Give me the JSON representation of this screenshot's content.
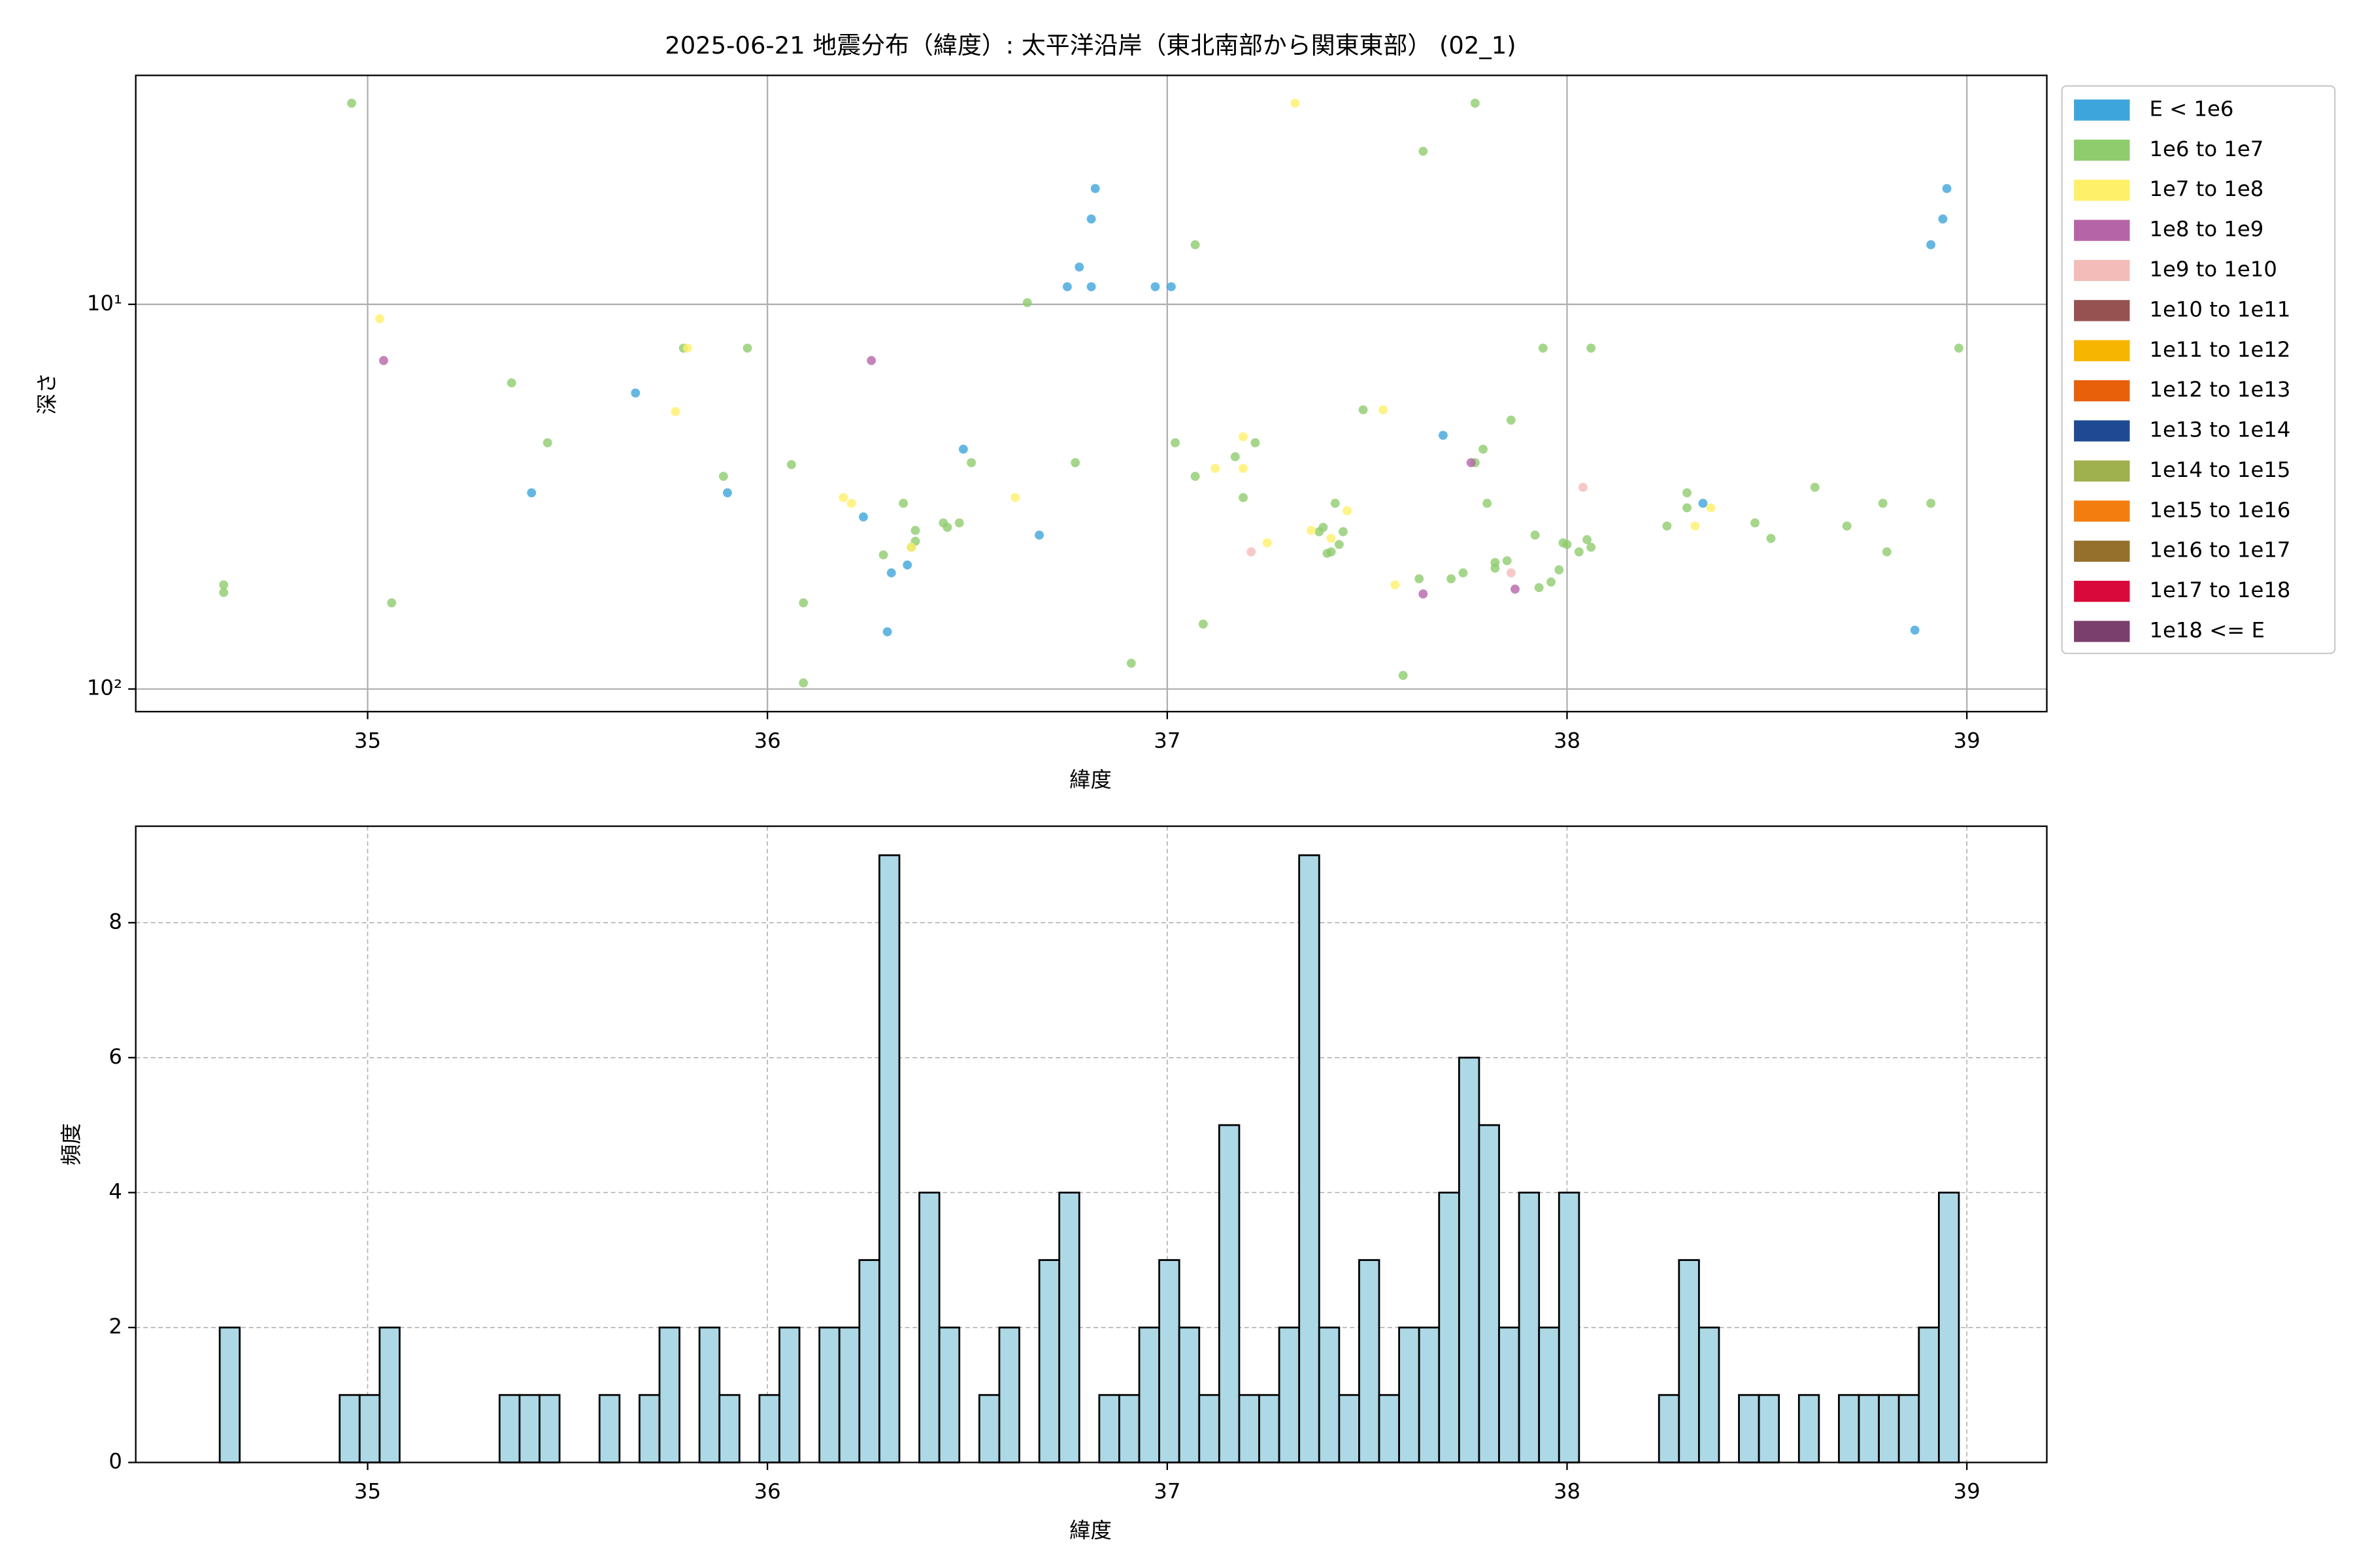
{
  "chart_data": [
    {
      "type": "scatter",
      "title": "2025-06-21 地震分布（緯度）: 太平洋沿岸（東北南部から関東東部） (02_1)",
      "xlabel": "緯度",
      "ylabel": "深さ",
      "xlim": [
        34.42,
        39.2
      ],
      "xticks": [
        35,
        36,
        37,
        38,
        39
      ],
      "ylim": [
        2.54,
        114.5
      ],
      "ylog": true,
      "yinverted": true,
      "yticks": [
        {
          "value": 10,
          "label": "10¹"
        },
        {
          "value": 100,
          "label": "10²"
        }
      ],
      "grid": true,
      "legend": "outside upper right",
      "series": [
        {
          "name": "E < 1e6",
          "color": "#3ea5dc",
          "x": [
            35.67,
            35.41,
            35.9,
            36.24,
            36.35,
            36.31,
            36.3,
            36.49,
            36.68,
            36.82,
            36.81,
            36.78,
            36.75,
            36.81,
            36.97,
            37.01,
            37.69,
            38.34,
            38.95,
            38.94,
            38.91,
            38.87
          ],
          "y": [
            17.0,
            30.9,
            30.9,
            35.7,
            47.6,
            49.9,
            71.0,
            23.8,
            39.8,
            5.0,
            6.0,
            8.0,
            9.0,
            9.0,
            9.0,
            9.0,
            21.9,
            32.9,
            5.0,
            6.0,
            7.0,
            70.3
          ]
        },
        {
          "name": "1e6 to 1e7",
          "color": "#8fcc6e",
          "x": [
            34.96,
            34.64,
            34.64,
            35.06,
            35.36,
            35.45,
            35.79,
            35.95,
            35.89,
            36.06,
            36.09,
            36.09,
            36.29,
            36.34,
            36.37,
            36.37,
            36.36,
            36.44,
            36.45,
            36.48,
            36.51,
            36.65,
            36.77,
            36.91,
            37.02,
            37.07,
            37.07,
            37.09,
            37.17,
            37.22,
            37.19,
            37.38,
            37.39,
            37.4,
            37.41,
            37.42,
            37.43,
            37.44,
            37.49,
            37.59,
            37.63,
            37.64,
            37.71,
            37.74,
            37.77,
            37.79,
            37.77,
            37.8,
            37.82,
            37.82,
            37.85,
            37.86,
            37.92,
            37.93,
            37.94,
            37.96,
            37.98,
            37.99,
            38.0,
            38.03,
            38.05,
            38.06,
            38.06,
            38.25,
            38.3,
            38.3,
            38.47,
            38.51,
            38.62,
            38.7,
            38.79,
            38.8,
            38.91,
            38.98
          ],
          "y": [
            3.0,
            53.6,
            56.1,
            59.7,
            16.0,
            22.9,
            13.0,
            13.0,
            28.0,
            26.1,
            59.7,
            96.4,
            44.8,
            32.9,
            38.7,
            41.3,
            42.8,
            37.0,
            38.0,
            37.0,
            25.8,
            9.9,
            25.8,
            85.7,
            22.9,
            7.0,
            28.0,
            67.8,
            24.9,
            22.9,
            31.8,
            39.0,
            38.0,
            44.4,
            44.0,
            32.9,
            42.1,
            39.0,
            18.8,
            92.2,
            51.7,
            4.0,
            51.7,
            49.9,
            3.0,
            23.8,
            25.8,
            32.9,
            46.9,
            48.5,
            46.4,
            20.0,
            39.8,
            54.5,
            13.0,
            52.7,
            49.0,
            41.7,
            42.1,
            44.0,
            40.9,
            13.0,
            42.8,
            37.7,
            30.9,
            33.8,
            37.0,
            40.6,
            29.9,
            37.7,
            32.9,
            44.0,
            32.9,
            13.0
          ]
        },
        {
          "name": "1e7 to 1e8",
          "color": "#fff06a",
          "x": [
            35.03,
            35.77,
            35.8,
            36.19,
            36.21,
            36.36,
            36.62,
            37.12,
            37.19,
            37.19,
            37.25,
            37.32,
            37.36,
            37.41,
            37.45,
            37.54,
            37.57,
            38.32,
            38.36
          ],
          "y": [
            10.9,
            19.0,
            13.0,
            31.8,
            32.9,
            42.8,
            31.8,
            26.7,
            22.1,
            26.7,
            41.7,
            3.0,
            38.7,
            40.6,
            34.4,
            18.8,
            53.6,
            37.7,
            33.8
          ]
        },
        {
          "name": "1e8 to 1e9",
          "color": "#b565a7",
          "x": [
            35.04,
            36.26,
            37.64,
            37.76,
            37.87
          ],
          "y": [
            14.0,
            14.0,
            56.6,
            25.8,
            55.0
          ]
        },
        {
          "name": "1e9 to 1e10",
          "color": "#f4bcb8",
          "x": [
            37.21,
            38.04,
            37.86
          ],
          "y": [
            44.0,
            29.9,
            49.9
          ]
        },
        {
          "name": "1e10 to 1e11",
          "color": "#955251",
          "x": [],
          "y": []
        },
        {
          "name": "1e11 to 1e12",
          "color": "#f6b500",
          "x": [],
          "y": []
        },
        {
          "name": "1e12 to 1e13",
          "color": "#e8600a",
          "x": [],
          "y": []
        },
        {
          "name": "1e13 to 1e14",
          "color": "#1f4a93",
          "x": [],
          "y": []
        },
        {
          "name": "1e14 to 1e15",
          "color": "#9fb04e",
          "x": [],
          "y": []
        },
        {
          "name": "1e15 to 1e16",
          "color": "#f37e0f",
          "x": [],
          "y": []
        },
        {
          "name": "1e16 to 1e17",
          "color": "#956f2c",
          "x": [],
          "y": []
        },
        {
          "name": "1e17 to 1e18",
          "color": "#d90a3b",
          "x": [],
          "y": []
        },
        {
          "name": "1e18 <= E",
          "color": "#7b3f6e",
          "x": [],
          "y": []
        }
      ]
    },
    {
      "type": "histogram",
      "xlabel": "緯度",
      "ylabel": "頻度",
      "color": "#add8e6",
      "edgecolor": "#000000",
      "xlim": [
        34.42,
        39.2
      ],
      "xticks": [
        35,
        36,
        37,
        38,
        39
      ],
      "ylim": [
        0,
        9.43
      ],
      "yticks": [
        0,
        2,
        4,
        6,
        8
      ],
      "grid": true,
      "bins": [
        34.63,
        34.68,
        34.73,
        34.78,
        34.83,
        34.88,
        34.93,
        34.98,
        35.03,
        35.08,
        35.13,
        35.18,
        35.23,
        35.28,
        35.33,
        35.38,
        35.43,
        35.48,
        35.53,
        35.58,
        35.63,
        35.68,
        35.73,
        35.78,
        35.83,
        35.88,
        35.93,
        35.98,
        36.03,
        36.08,
        36.13,
        36.18,
        36.23,
        36.28,
        36.33,
        36.38,
        36.43,
        36.48,
        36.53,
        36.58,
        36.63,
        36.68,
        36.73,
        36.78,
        36.83,
        36.88,
        36.93,
        36.98,
        37.03,
        37.08,
        37.13,
        37.18,
        37.23,
        37.28,
        37.33,
        37.38,
        37.43,
        37.48,
        37.53,
        37.58,
        37.63,
        37.68,
        37.73,
        37.78,
        37.83,
        37.88,
        37.93,
        37.98,
        38.03,
        38.08,
        38.13,
        38.18,
        38.23,
        38.28,
        38.33,
        38.38,
        38.43,
        38.48,
        38.53,
        38.58,
        38.63,
        38.68,
        38.73,
        38.78,
        38.83,
        38.88,
        38.93,
        38.98
      ],
      "counts": [
        2,
        0,
        0,
        0,
        0,
        0,
        1,
        1,
        2,
        0,
        0,
        0,
        0,
        0,
        1,
        1,
        1,
        0,
        0,
        1,
        0,
        1,
        2,
        0,
        2,
        1,
        0,
        1,
        2,
        0,
        2,
        2,
        3,
        9,
        0,
        4,
        2,
        0,
        1,
        2,
        0,
        3,
        4,
        0,
        1,
        1,
        2,
        3,
        2,
        1,
        5,
        1,
        1,
        2,
        9,
        2,
        1,
        3,
        1,
        2,
        2,
        4,
        6,
        5,
        2,
        4,
        2,
        4,
        0,
        0,
        0,
        0,
        1,
        3,
        2,
        0,
        1,
        1,
        0,
        1,
        0,
        1,
        1,
        1,
        1,
        2,
        4
      ]
    }
  ]
}
